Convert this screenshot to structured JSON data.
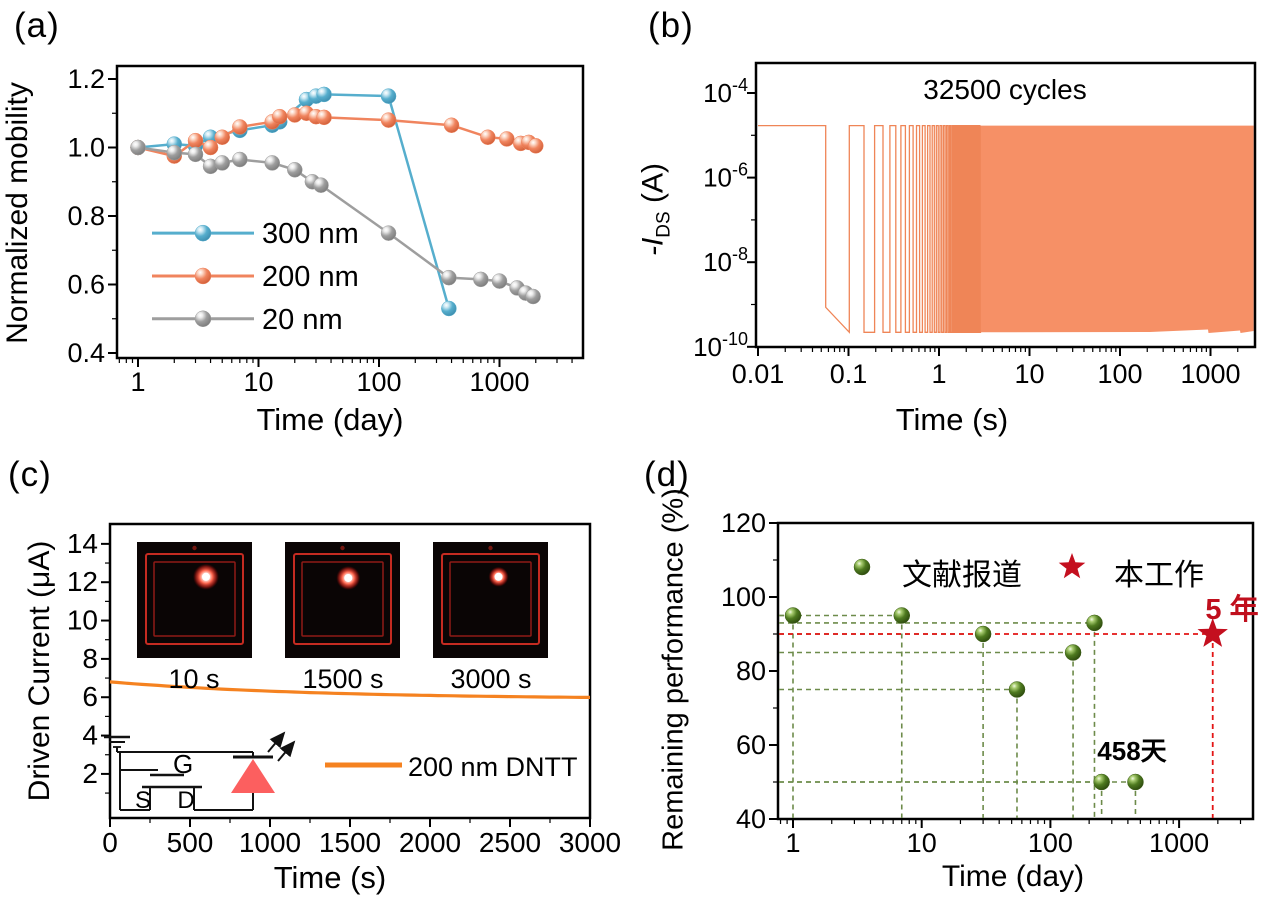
{
  "labels": {
    "a": "(a)",
    "b": "(b)",
    "c": "(c)",
    "d": "(d)"
  },
  "chart_data": [
    {
      "id": "a",
      "type": "scatter",
      "xlabel": "Time (day)",
      "ylabel": "Normalized mobility",
      "xscale": "log",
      "xlim": [
        0.67,
        4800
      ],
      "xticks": [
        1,
        10,
        100,
        1000
      ],
      "ylim": [
        0.4,
        1.25
      ],
      "yticks": [
        0.4,
        0.6,
        0.8,
        1.0,
        1.2
      ],
      "yminors": [
        0.5,
        0.7,
        0.9,
        1.1
      ],
      "legend_position": "lower-left",
      "series": [
        {
          "name": "300 nm",
          "color": "#56aecd",
          "points": [
            [
              1,
              1.0
            ],
            [
              2,
              1.01
            ],
            [
              3,
              1.005
            ],
            [
              4,
              1.03
            ],
            [
              7,
              1.05
            ],
            [
              13,
              1.065
            ],
            [
              15,
              1.075
            ],
            [
              25,
              1.14
            ],
            [
              30,
              1.15
            ],
            [
              35,
              1.155
            ],
            [
              120,
              1.15
            ],
            [
              380,
              0.53
            ]
          ]
        },
        {
          "name": "200 nm",
          "color": "#f0845e",
          "points": [
            [
              1,
              1.0
            ],
            [
              2,
              0.975
            ],
            [
              3,
              1.02
            ],
            [
              4,
              1.0
            ],
            [
              5,
              1.03
            ],
            [
              7,
              1.06
            ],
            [
              13,
              1.075
            ],
            [
              15,
              1.09
            ],
            [
              20,
              1.095
            ],
            [
              25,
              1.1
            ],
            [
              30,
              1.09
            ],
            [
              35,
              1.088
            ],
            [
              120,
              1.08
            ],
            [
              400,
              1.065
            ],
            [
              800,
              1.03
            ],
            [
              1150,
              1.025
            ],
            [
              1500,
              1.012
            ],
            [
              1750,
              1.015
            ],
            [
              2000,
              1.005
            ]
          ]
        },
        {
          "name": "20 nm",
          "color": "#9e9e9e",
          "points": [
            [
              1,
              1.0
            ],
            [
              2,
              0.985
            ],
            [
              3,
              0.98
            ],
            [
              4,
              0.945
            ],
            [
              5,
              0.955
            ],
            [
              7,
              0.965
            ],
            [
              13,
              0.955
            ],
            [
              20,
              0.935
            ],
            [
              28,
              0.9
            ],
            [
              33,
              0.89
            ],
            [
              120,
              0.75
            ],
            [
              380,
              0.62
            ],
            [
              700,
              0.615
            ],
            [
              1000,
              0.61
            ],
            [
              1400,
              0.59
            ],
            [
              1650,
              0.575
            ],
            [
              1900,
              0.565
            ]
          ]
        }
      ]
    },
    {
      "id": "b",
      "type": "line",
      "title": "32500 cycles",
      "xlabel": "Time (s)",
      "ylabel": "-I_DS (A)",
      "ylabel_parts": [
        "-I",
        "DS",
        " (A)"
      ],
      "xscale": "log",
      "yscale": "log",
      "xlim": [
        0.01,
        3000
      ],
      "xticks": [
        0.01,
        0.1,
        1,
        10,
        100,
        1000
      ],
      "ytick_exponents": [
        -4,
        -6,
        -8,
        -10
      ],
      "yminor_exponents": [
        -5,
        -7,
        -9
      ],
      "waveform": {
        "shape": "square",
        "cycles": 32500,
        "period_s": 0.0923,
        "first_fall_s": 0.056,
        "on_level_A": 1.7e-05,
        "off_level_A": 2.2e-10,
        "color": "#ef8557",
        "fill_color": "#f69066"
      }
    },
    {
      "id": "c",
      "type": "line",
      "xlabel": "Time (s)",
      "ylabel": "Driven Current (μA)",
      "xlim": [
        0,
        3000
      ],
      "xticks": [
        0,
        500,
        1000,
        1500,
        2000,
        2500,
        3000
      ],
      "ylim": [
        0,
        14.7
      ],
      "yticks": [
        2,
        4,
        6,
        8,
        10,
        12,
        14
      ],
      "yminors": [
        1,
        3,
        5,
        7,
        9,
        11,
        13
      ],
      "series": [
        {
          "name": "200 nm DNTT",
          "color": "#f58220",
          "decay": {
            "start_uA": 6.8,
            "end_uA": 5.99,
            "baseline_uA": 5.9,
            "amplitude_uA": 0.9,
            "tau_s": 1300
          }
        }
      ],
      "insets": {
        "photos": [
          {
            "label": "10 s"
          },
          {
            "label": "1500 s"
          },
          {
            "label": "3000 s"
          }
        ],
        "circuit_labels": {
          "gate": "G",
          "source": "S",
          "drain": "D"
        }
      }
    },
    {
      "id": "d",
      "type": "scatter",
      "xlabel": "Time (day)",
      "ylabel": "Remaining performance (%)",
      "xscale": "log",
      "xlim": [
        0.75,
        3800
      ],
      "xticks": [
        1,
        10,
        100,
        1000
      ],
      "ylim": [
        40,
        122
      ],
      "yticks": [
        40,
        60,
        80,
        100,
        120
      ],
      "yminors": [
        50,
        70,
        90,
        110
      ],
      "series": [
        {
          "name": "文献报道",
          "marker": "sphere",
          "color": "#4e7a1f",
          "guide_color": "#6d8b4a",
          "points": [
            [
              1,
              95
            ],
            [
              7,
              95
            ],
            [
              30,
              90
            ],
            [
              55,
              75
            ],
            [
              150,
              85
            ],
            [
              220,
              93
            ],
            [
              250,
              50
            ],
            [
              458,
              50
            ]
          ]
        },
        {
          "name": "本工作",
          "marker": "star",
          "color": "#c40f1f",
          "guide_color": "#e31515",
          "points": [
            [
              1825,
              90
            ]
          ]
        }
      ],
      "annotations": [
        {
          "text": "5 年",
          "color": "#c00f1d",
          "at_point": [
            1825,
            90
          ]
        },
        {
          "text": "458天",
          "color": "#1a1a1a",
          "at_point": [
            458,
            50
          ]
        }
      ]
    }
  ]
}
